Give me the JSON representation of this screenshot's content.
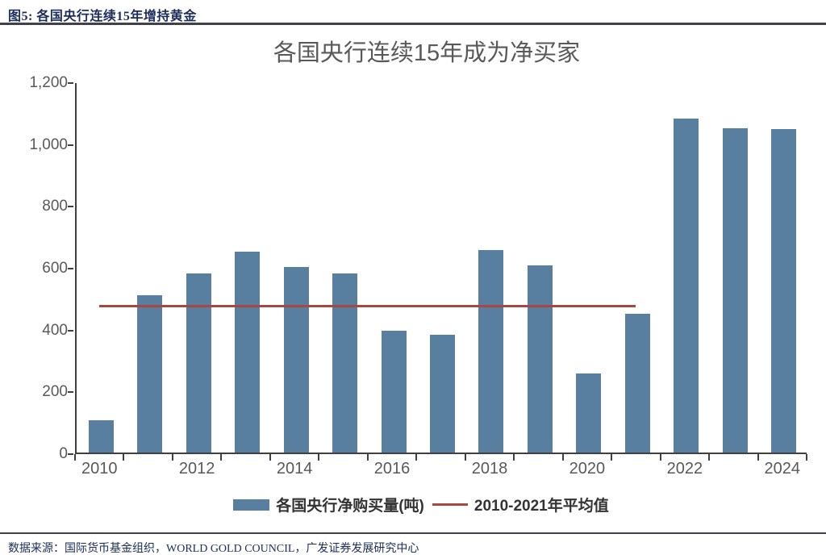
{
  "figure": {
    "header": "图5:  各国央行连续15年增持黄金",
    "source": "数据来源：国际货币基金组织，WORLD GOLD COUNCIL，广发证券发展研究中心"
  },
  "colors": {
    "bar": "#587f9f",
    "average_line": "#a84641",
    "axis": "#404040",
    "tick_label": "#595959",
    "chart_title": "#595959",
    "header_text": "#1c2d5a",
    "rule": "#41414c"
  },
  "chart_data": {
    "type": "bar",
    "title": "各国央行连续15年成为净买家",
    "categories": [
      "2010",
      "2011",
      "2012",
      "2013",
      "2014",
      "2015",
      "2016",
      "2017",
      "2018",
      "2019",
      "2020",
      "2021",
      "2022",
      "2023",
      "2024"
    ],
    "values": [
      105,
      510,
      580,
      650,
      600,
      580,
      395,
      380,
      655,
      605,
      255,
      450,
      1080,
      1050,
      1045
    ],
    "series_name": "各国央行净购买量(吨)",
    "x_tick_labels": [
      "2010",
      "2012",
      "2014",
      "2016",
      "2018",
      "2020",
      "2022",
      "2024"
    ],
    "y_ticks": [
      0,
      200,
      400,
      600,
      800,
      1000,
      1200
    ],
    "ylim": [
      0,
      1200
    ],
    "xlabel": "",
    "ylabel": "",
    "grid": false,
    "legend_position": "bottom",
    "average_line": {
      "value": 480,
      "from_category": "2010",
      "to_category": "2021",
      "label": "2010-2021年平均值"
    },
    "legend": [
      {
        "type": "bar",
        "label": "各国央行净购买量(吨)"
      },
      {
        "type": "line",
        "label": "2010-2021年平均值"
      }
    ]
  }
}
